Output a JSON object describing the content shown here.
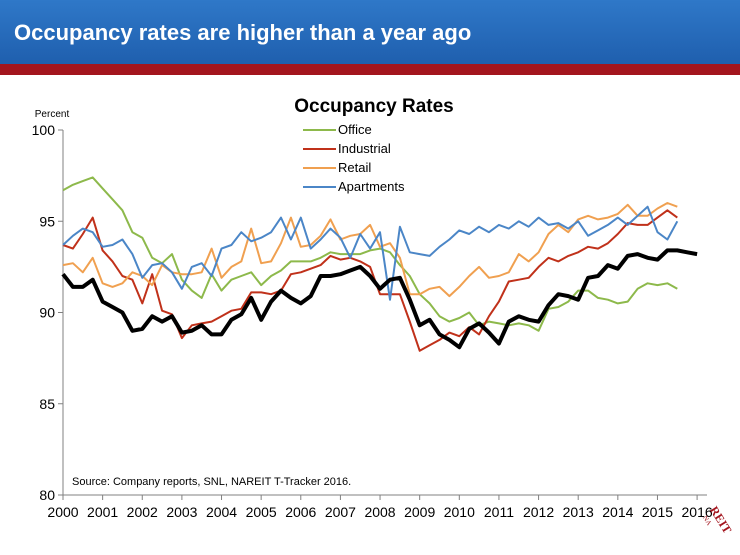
{
  "slide": {
    "title": "Occupancy rates are higher than a year ago",
    "logo_text": "NAREIT"
  },
  "colors": {
    "banner": "#2467bb",
    "banner_bar": "#a3151e",
    "Office": "#8db94b",
    "Industrial": "#c0311a",
    "Retail": "#f0a050",
    "Apartments": "#4b86c7",
    "Total": "#000000"
  },
  "chart_data": {
    "type": "line",
    "title": "Occupancy Rates",
    "ylabel": "Percent",
    "xlabel": "",
    "ylim": [
      80,
      100
    ],
    "yticks": [
      80,
      85,
      90,
      95,
      100
    ],
    "xlim": [
      2000,
      2016.25
    ],
    "xticks": [
      "2000",
      "2001",
      "2002",
      "2003",
      "2004",
      "2005",
      "2006",
      "2007",
      "2008",
      "2009",
      "2010",
      "2011",
      "2012",
      "2013",
      "2014",
      "2015",
      "2016"
    ],
    "grid": "none",
    "legend": "top-center",
    "source_note": "Source: Company reports, SNL, NAREIT T-Tracker 2016.",
    "x_quarter_step": 0.25,
    "series": [
      {
        "name": "Office",
        "values": [
          96.7,
          97.0,
          97.2,
          97.4,
          96.8,
          96.2,
          95.6,
          94.4,
          94.1,
          93.0,
          92.7,
          93.2,
          91.8,
          91.2,
          90.8,
          92.1,
          91.2,
          91.8,
          92.0,
          92.2,
          91.5,
          92.0,
          92.3,
          92.8,
          92.8,
          92.8,
          93.0,
          93.3,
          93.2,
          93.2,
          93.2,
          93.4,
          93.5,
          93.3,
          92.6,
          92.0,
          91.0,
          90.5,
          89.8,
          89.5,
          89.7,
          90.0,
          89.3,
          89.5,
          89.4,
          89.3,
          89.4,
          89.3,
          89.0,
          90.2,
          90.3,
          90.6,
          91.2,
          91.2,
          90.8,
          90.7,
          90.5,
          90.6,
          91.3,
          91.6,
          91.5,
          91.6,
          91.3
        ]
      },
      {
        "name": "Industrial",
        "values": [
          93.7,
          93.5,
          94.3,
          95.2,
          93.4,
          92.8,
          92.0,
          91.8,
          90.5,
          92.1,
          90.1,
          89.9,
          88.6,
          89.3,
          89.4,
          89.5,
          89.8,
          90.1,
          90.2,
          91.1,
          91.1,
          91.0,
          91.2,
          92.1,
          92.2,
          92.4,
          92.6,
          93.1,
          92.9,
          93.0,
          92.8,
          92.5,
          91.0,
          91.0,
          91.0,
          89.5,
          87.9,
          88.2,
          88.5,
          88.9,
          88.7,
          89.2,
          88.8,
          89.8,
          90.6,
          91.7,
          91.8,
          91.9,
          92.5,
          93.0,
          92.8,
          93.1,
          93.3,
          93.6,
          93.5,
          93.8,
          94.3,
          94.9,
          94.8,
          94.8,
          95.2,
          95.6,
          95.2
        ]
      },
      {
        "name": "Retail",
        "values": [
          92.6,
          92.7,
          92.2,
          93.0,
          91.6,
          91.4,
          91.6,
          92.2,
          92.0,
          91.5,
          92.6,
          92.2,
          92.1,
          92.1,
          92.2,
          93.5,
          91.9,
          92.5,
          92.8,
          94.6,
          92.7,
          92.8,
          93.8,
          95.2,
          93.6,
          93.7,
          94.2,
          95.1,
          94.0,
          94.2,
          94.3,
          94.8,
          93.6,
          93.8,
          93.0,
          91.0,
          91.0,
          91.3,
          91.4,
          90.9,
          91.4,
          92.0,
          92.5,
          91.9,
          92.0,
          92.2,
          93.2,
          92.8,
          93.3,
          94.3,
          94.8,
          94.4,
          95.1,
          95.3,
          95.1,
          95.2,
          95.4,
          95.9,
          95.3,
          95.3,
          95.7,
          96.0,
          95.8
        ]
      },
      {
        "name": "Apartments",
        "values": [
          93.7,
          94.2,
          94.6,
          94.4,
          93.6,
          93.7,
          94.0,
          93.2,
          91.9,
          92.6,
          92.7,
          92.2,
          91.3,
          92.5,
          92.7,
          92.0,
          93.5,
          93.7,
          94.4,
          93.9,
          94.1,
          94.4,
          95.2,
          94.0,
          95.2,
          93.5,
          94.0,
          94.6,
          94.1,
          93.0,
          94.3,
          93.5,
          94.4,
          90.7,
          94.7,
          93.3,
          93.2,
          93.1,
          93.6,
          94.0,
          94.5,
          94.3,
          94.7,
          94.4,
          94.8,
          94.6,
          95.0,
          94.7,
          95.2,
          94.8,
          94.9,
          94.6,
          95.0,
          94.2,
          94.5,
          94.8,
          95.2,
          94.8,
          95.3,
          95.8,
          94.4,
          94.0,
          95.0
        ]
      },
      {
        "name": "",
        "values": [
          92.1,
          91.4,
          91.4,
          91.8,
          90.6,
          90.3,
          90.0,
          89.0,
          89.1,
          89.8,
          89.5,
          89.8,
          88.9,
          89.0,
          89.3,
          88.8,
          88.8,
          89.6,
          89.9,
          90.8,
          89.6,
          90.6,
          91.2,
          90.8,
          90.5,
          90.9,
          92.0,
          92.0,
          92.1,
          92.3,
          92.5,
          92.0,
          91.3,
          91.8,
          91.9,
          90.7,
          89.3,
          89.6,
          88.8,
          88.5,
          88.1,
          89.1,
          89.4,
          88.9,
          88.3,
          89.5,
          89.8,
          89.6,
          89.5,
          90.4,
          91.0,
          90.9,
          90.7,
          91.9,
          92.0,
          92.6,
          92.4,
          93.1,
          93.2,
          93.0,
          92.9,
          93.4,
          93.4,
          93.3,
          93.2
        ]
      }
    ]
  }
}
